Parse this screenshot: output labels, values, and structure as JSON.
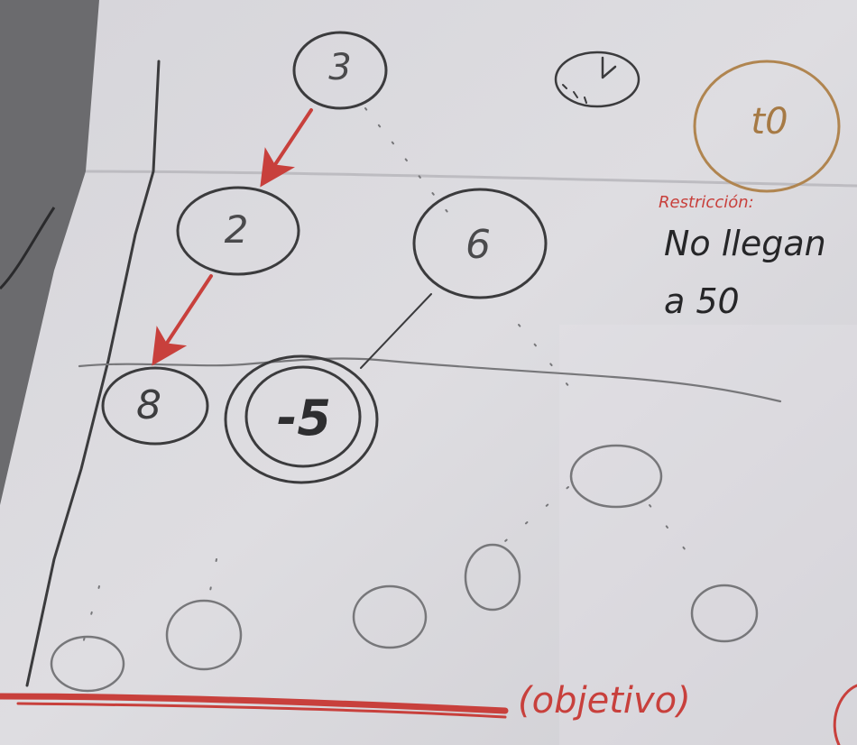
{
  "nodes": {
    "n3": "3",
    "n2": "2",
    "n6": "6",
    "n8": "8",
    "n_minus5": "-5",
    "t0": "t0"
  },
  "notes": {
    "restriction_label": "Restricción:",
    "restriction_line1": "No llegan",
    "restriction_line2": "a 50",
    "objective": "(objetivo)"
  },
  "colors": {
    "paper": "#d9d8dc",
    "pencil": "#3b3b3d",
    "red_pencil": "#c8403c",
    "brown_pencil": "#b08550",
    "background": "#6f6f72"
  },
  "icons": {
    "clock": "clock-icon"
  }
}
